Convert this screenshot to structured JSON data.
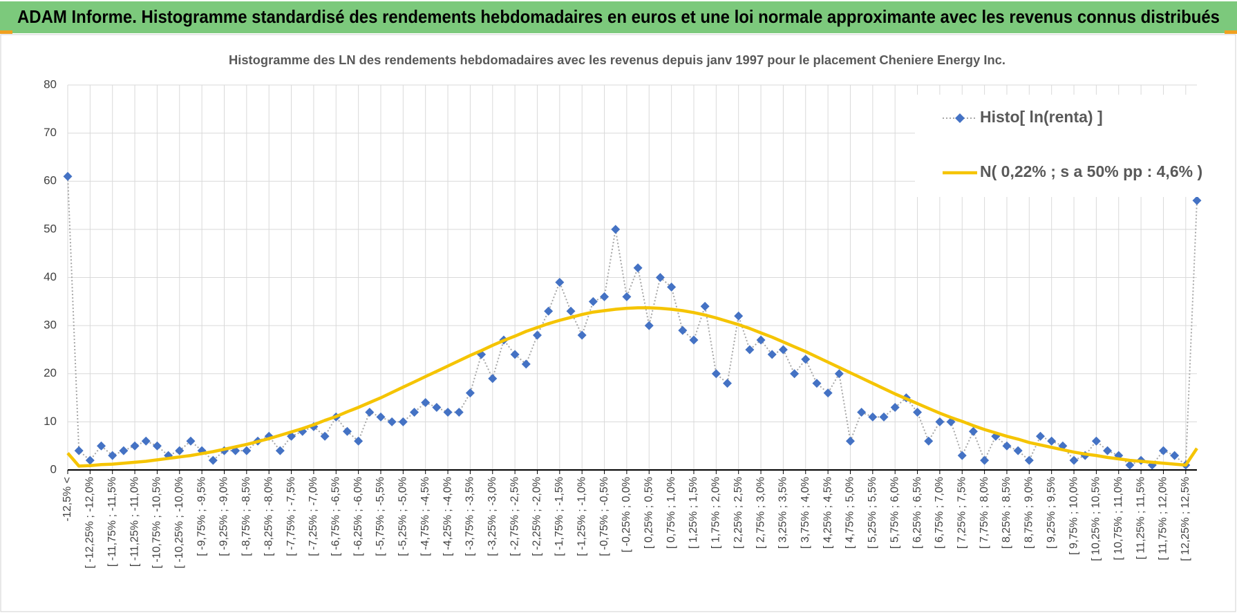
{
  "chart_data": {
    "type": "line",
    "header": "ADAM Informe. Histogramme standardisé des rendements hebdomadaires en euros et une loi normale approximante avec les revenus connus distribués",
    "title": "Histogramme  des LN des rendements hebdomadaires avec les revenus depuis janv 1997 pour le placement Cheniere Energy Inc.",
    "categories": [
      "-12,5% <",
      null,
      "[ -12,25% ; -12,0%",
      null,
      "[ -11,75% ; -11,5%",
      null,
      "[ -11,25% ; -11,0%",
      null,
      "[ -10,75% ; -10,5%",
      null,
      "[ -10,25% ; -10,0%",
      null,
      "[ -9,75% ; -9,5%",
      null,
      "[ -9,25% ; -9,0%",
      null,
      "[ -8,75% ; -8,5%",
      null,
      "[ -8,25% ; -8,0%",
      null,
      "[ -7,75% ; -7,5%",
      null,
      "[ -7,25% ; -7,0%",
      null,
      "[ -6,75% ; -6,5%",
      null,
      "[ -6,25% ; -6,0%",
      null,
      "[ -5,75% ; -5,5%",
      null,
      "[ -5,25% ; -5,0%",
      null,
      "[ -4,75% ; -4,5%",
      null,
      "[ -4,25% ; -4,0%",
      null,
      "[ -3,75% ; -3,5%",
      null,
      "[ -3,25% ; -3,0%",
      null,
      "[ -2,75% ; -2,5%",
      null,
      "[ -2,25% ; -2,0%",
      null,
      "[ -1,75% ; -1,5%",
      null,
      "[ -1,25% ; -1,0%",
      null,
      "[ -0,75% ; -0,5%",
      null,
      "[ -0,25% ; 0,0%",
      null,
      "[ 0,25% ; 0,5%",
      null,
      "[ 0,75% ; 1,0%",
      null,
      "[ 1,25% ; 1,5%",
      null,
      "[ 1,75% ; 2,0%",
      null,
      "[ 2,25% ; 2,5%",
      null,
      "[ 2,75% ; 3,0%",
      null,
      "[ 3,25% ; 3,5%",
      null,
      "[ 3,75% ; 4,0%",
      null,
      "[ 4,25% ; 4,5%",
      null,
      "[ 4,75% ; 5,0%",
      null,
      "[ 5,25% ; 5,5%",
      null,
      "[ 5,75% ; 6,0%",
      null,
      "[ 6,25% ; 6,5%",
      null,
      "[ 6,75% ; 7,0%",
      null,
      "[ 7,25% ; 7,5%",
      null,
      "[ 7,75% ; 8,0%",
      null,
      "[ 8,25% ; 8,5%",
      null,
      "[ 8,75% ; 9,0%",
      null,
      "[ 9,25% ; 9,5%",
      null,
      "[ 9,75% ; 10,0%",
      null,
      "[ 10,25% ; 10,5%",
      null,
      "[ 10,75% ; 11,0%",
      null,
      "[ 11,25% ; 11,5%",
      null,
      "[ 11,75% ; 12,0%",
      null,
      "[ 12,25% ; 12,5%",
      null
    ],
    "series": [
      {
        "name": "Histo[ ln(renta) ]",
        "color": "#4472c4",
        "line_color": "#a6a6a6",
        "marker": "diamond",
        "values": [
          61,
          4,
          2,
          5,
          3,
          4,
          5,
          6,
          5,
          3,
          4,
          6,
          4,
          2,
          4,
          4,
          4,
          6,
          7,
          4,
          7,
          8,
          9,
          7,
          11,
          8,
          6,
          12,
          11,
          10,
          10,
          12,
          14,
          13,
          12,
          12,
          16,
          24,
          19,
          27,
          24,
          22,
          28,
          33,
          39,
          33,
          28,
          35,
          36,
          50,
          36,
          42,
          30,
          40,
          38,
          29,
          27,
          34,
          20,
          18,
          32,
          25,
          27,
          24,
          25,
          20,
          23,
          18,
          16,
          20,
          6,
          12,
          11,
          11,
          13,
          15,
          12,
          6,
          10,
          10,
          3,
          8,
          2,
          7,
          5,
          4,
          2,
          7,
          6,
          5,
          2,
          3,
          6,
          4,
          3,
          1,
          2,
          1,
          4,
          3,
          1,
          56
        ]
      },
      {
        "name": "N( 0,22% ; s a 50% pp : 4,6% )",
        "color": "#f5c400",
        "marker": "none",
        "values": [
          3.5,
          0.8,
          0.9,
          1.1,
          1.2,
          1.4,
          1.6,
          1.8,
          2.1,
          2.4,
          2.7,
          3.0,
          3.4,
          3.8,
          4.3,
          4.8,
          5.3,
          5.9,
          6.5,
          7.2,
          7.9,
          8.6,
          9.4,
          10.3,
          11.1,
          12.1,
          13.0,
          14.0,
          15.0,
          16.1,
          17.2,
          18.3,
          19.4,
          20.5,
          21.6,
          22.7,
          23.8,
          24.8,
          25.9,
          26.9,
          27.8,
          28.8,
          29.6,
          30.4,
          31.1,
          31.7,
          32.3,
          32.8,
          33.1,
          33.4,
          33.6,
          33.7,
          33.7,
          33.6,
          33.4,
          33.1,
          32.7,
          32.2,
          31.6,
          30.9,
          30.2,
          29.4,
          28.5,
          27.6,
          26.6,
          25.6,
          24.6,
          23.5,
          22.4,
          21.3,
          20.2,
          19.1,
          18.0,
          16.9,
          15.8,
          14.8,
          13.8,
          12.8,
          11.8,
          10.9,
          10.1,
          9.2,
          8.4,
          7.7,
          7.0,
          6.4,
          5.7,
          5.2,
          4.7,
          4.2,
          3.7,
          3.3,
          3.0,
          2.6,
          2.3,
          2.0,
          1.8,
          1.6,
          1.4,
          1.2,
          1.0,
          4.5
        ]
      }
    ],
    "ylim": [
      0,
      80
    ],
    "yticks": [
      0,
      10,
      20,
      30,
      40,
      50,
      60,
      70,
      80
    ],
    "grid": true,
    "legend": "top-right"
  }
}
